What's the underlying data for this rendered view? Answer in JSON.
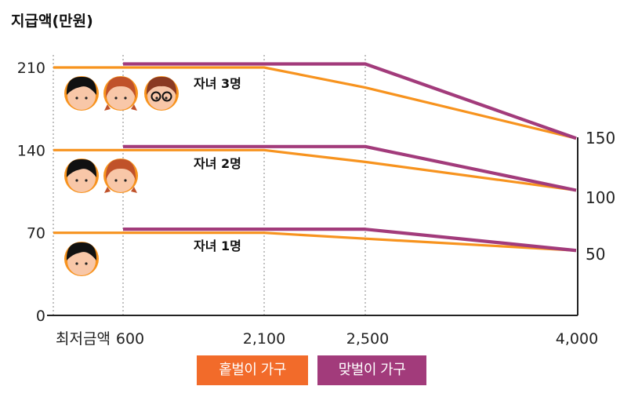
{
  "chart_data": {
    "type": "line",
    "ylabel": "지급액(만원)",
    "x_ticks": [
      "최저금액",
      "600",
      "2,100",
      "2,500",
      "4,000"
    ],
    "y_ticks": [
      "0",
      "70",
      "140",
      "210"
    ],
    "right_ticks": [
      "150",
      "100",
      "50"
    ],
    "ylim": [
      0,
      210
    ],
    "groups": [
      {
        "label": "자녀 1명",
        "single": [
          [
            "최저금액",
            70
          ],
          [
            "600",
            70
          ],
          [
            "2,100",
            70
          ],
          [
            "2,500",
            65
          ],
          [
            "4,000",
            55
          ]
        ],
        "dual": [
          [
            "600",
            73
          ],
          [
            "2,100",
            73
          ],
          [
            "2,500",
            73
          ],
          [
            "4,000",
            55
          ]
        ],
        "end_value": "50"
      },
      {
        "label": "자녀 2명",
        "single": [
          [
            "최저금액",
            140
          ],
          [
            "600",
            140
          ],
          [
            "2,100",
            140
          ],
          [
            "2,500",
            130
          ],
          [
            "4,000",
            106
          ]
        ],
        "dual": [
          [
            "600",
            143
          ],
          [
            "2,100",
            143
          ],
          [
            "2,500",
            143
          ],
          [
            "4,000",
            106
          ]
        ],
        "end_value": "100"
      },
      {
        "label": "자녀 3명",
        "single": [
          [
            "최저금액",
            210
          ],
          [
            "600",
            210
          ],
          [
            "2,100",
            210
          ],
          [
            "2,500",
            193
          ],
          [
            "4,000",
            150
          ]
        ],
        "dual": [
          [
            "600",
            213
          ],
          [
            "2,100",
            213
          ],
          [
            "2,500",
            213
          ],
          [
            "4,000",
            150
          ]
        ],
        "end_value": "150"
      }
    ],
    "series": [
      {
        "name": "홑벌이 가구",
        "color": "#F7931E"
      },
      {
        "name": "맞벌이 가구",
        "color": "#A23B7B"
      }
    ],
    "grid": "dotted vertical lines at x ticks",
    "legend": "bottom-center"
  },
  "legend": {
    "single_label": "홑벌이 가구",
    "dual_label": "맞벌이 가구",
    "single_color": "#F26B2A",
    "dual_color": "#A23B7B"
  },
  "icons": [
    "boy-face-icon",
    "girl-face-icon",
    "glasses-face-icon"
  ]
}
